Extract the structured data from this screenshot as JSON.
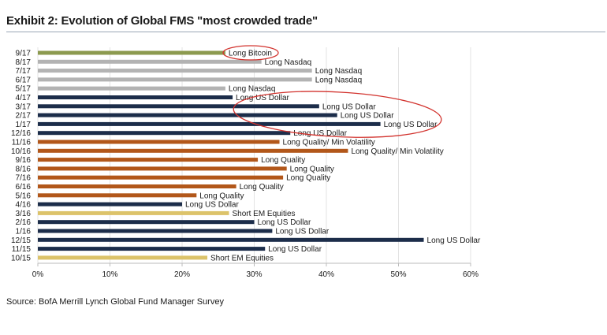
{
  "header": {
    "title": "Exhibit 2: Evolution of Global FMS \"most crowded trade\""
  },
  "footer": {
    "source": "Source: BofA Merrill Lynch Global Fund Manager Survey"
  },
  "chart_data": {
    "type": "bar",
    "orientation": "horizontal",
    "title": "Exhibit 2: Evolution of Global FMS \"most crowded trade\"",
    "xlim": [
      0,
      60
    ],
    "xticks": [
      "0%",
      "10%",
      "20%",
      "30%",
      "40%",
      "50%",
      "60%"
    ],
    "grid": true,
    "colors": {
      "Long Bitcoin": "#8c9a4f",
      "Long Nasdaq": "#b3b3b3",
      "Long US Dollar": "#1c2d4a",
      "Long Quality/ Min Volatility": "#b2571a",
      "Long Quality": "#b2571a",
      "Short EM Equities": "#dcc36a",
      "highlight": "#d2322d"
    },
    "bars": [
      {
        "period": "9/17",
        "value": 26,
        "label": "Long Bitcoin"
      },
      {
        "period": "8/17",
        "value": 31,
        "label": "Long Nasdaq"
      },
      {
        "period": "7/17",
        "value": 38,
        "label": "Long Nasdaq"
      },
      {
        "period": "6/17",
        "value": 38,
        "label": "Long Nasdaq"
      },
      {
        "period": "5/17",
        "value": 26,
        "label": "Long Nasdaq"
      },
      {
        "period": "4/17",
        "value": 27,
        "label": "Long US Dollar"
      },
      {
        "period": "3/17",
        "value": 39,
        "label": "Long US Dollar"
      },
      {
        "period": "2/17",
        "value": 41.5,
        "label": "Long US Dollar"
      },
      {
        "period": "1/17",
        "value": 47.5,
        "label": "Long US Dollar"
      },
      {
        "period": "12/16",
        "value": 35,
        "label": "Long US Dollar"
      },
      {
        "period": "11/16",
        "value": 33.5,
        "label": "Long Quality/ Min Volatility"
      },
      {
        "period": "10/16",
        "value": 43,
        "label": "Long Quality/ Min Volatility"
      },
      {
        "period": "9/16",
        "value": 30.5,
        "label": "Long Quality"
      },
      {
        "period": "8/16",
        "value": 34.5,
        "label": "Long Quality"
      },
      {
        "period": "7/16",
        "value": 34,
        "label": "Long Quality"
      },
      {
        "period": "6/16",
        "value": 27.5,
        "label": "Long Quality"
      },
      {
        "period": "5/16",
        "value": 22,
        "label": "Long Quality"
      },
      {
        "period": "4/16",
        "value": 20,
        "label": "Long US Dollar"
      },
      {
        "period": "3/16",
        "value": 26.5,
        "label": "Short EM Equities"
      },
      {
        "period": "2/16",
        "value": 30,
        "label": "Long US Dollar"
      },
      {
        "period": "1/16",
        "value": 32.5,
        "label": "Long US Dollar"
      },
      {
        "period": "12/15",
        "value": 53.5,
        "label": "Long US Dollar"
      },
      {
        "period": "11/15",
        "value": 31.5,
        "label": "Long US Dollar"
      },
      {
        "period": "10/15",
        "value": 23.5,
        "label": "Short EM Equities"
      }
    ],
    "annotations": [
      {
        "type": "circle",
        "periods": [
          "9/17"
        ]
      },
      {
        "type": "circle",
        "periods": [
          "3/17",
          "2/17",
          "1/17"
        ]
      }
    ]
  }
}
